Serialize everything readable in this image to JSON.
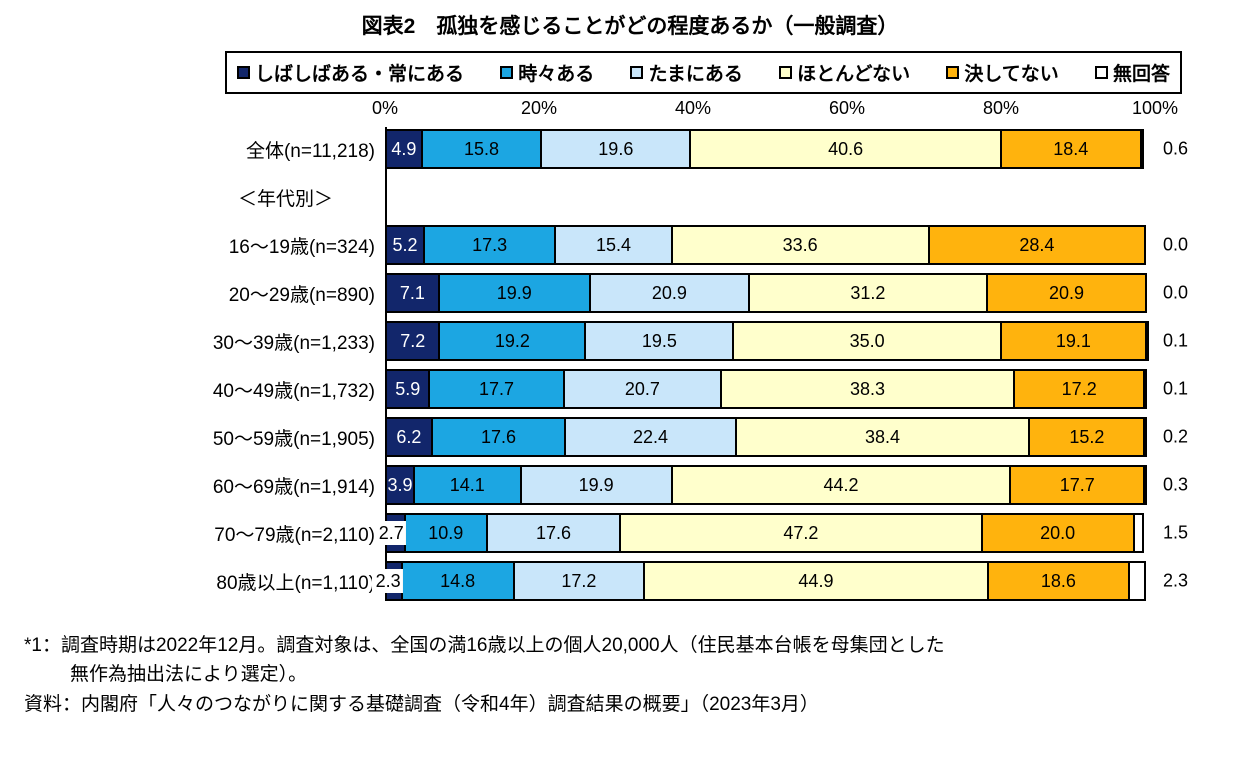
{
  "title": "図表2　孤独を感じることがどの程度あるか（一般調査）",
  "legend": [
    {
      "label": "しばしばある・常にある",
      "color": "#12266B"
    },
    {
      "label": "時々ある",
      "color": "#1CA6E2"
    },
    {
      "label": "たまにある",
      "color": "#C9E6FA"
    },
    {
      "label": "ほとんどない",
      "color": "#FFFFCC"
    },
    {
      "label": "決してない",
      "color": "#FFB30D"
    },
    {
      "label": "無回答",
      "color": "#FFFFFF"
    }
  ],
  "axis": {
    "ticks": [
      "0%",
      "20%",
      "40%",
      "60%",
      "80%",
      "100%"
    ]
  },
  "chart_data": {
    "type": "bar",
    "stacked": true,
    "orientation": "horizontal",
    "title": "図表2　孤独を感じることがどの程度あるか（一般調査）",
    "xlim": [
      0,
      100
    ],
    "x_ticks": [
      "0%",
      "20%",
      "40%",
      "60%",
      "80%",
      "100%"
    ],
    "legend_position": "top",
    "series_names": [
      "しばしばある・常にある",
      "時々ある",
      "たまにある",
      "ほとんどない",
      "決してない",
      "無回答"
    ],
    "series_colors": [
      "#12266B",
      "#1CA6E2",
      "#C9E6FA",
      "#FFFFCC",
      "#FFB30D",
      "#FFFFFF"
    ],
    "rows": [
      {
        "label": "全体(n=11,218)",
        "values": [
          4.9,
          15.8,
          19.6,
          40.6,
          18.4,
          0.6
        ]
      },
      {
        "type": "section",
        "label": "＜年代別＞"
      },
      {
        "label": "16～19歳(n=324)",
        "values": [
          5.2,
          17.3,
          15.4,
          33.6,
          28.4,
          0.0
        ]
      },
      {
        "label": "20～29歳(n=890)",
        "values": [
          7.1,
          19.9,
          20.9,
          31.2,
          20.9,
          0.0
        ]
      },
      {
        "label": "30～39歳(n=1,233)",
        "values": [
          7.2,
          19.2,
          19.5,
          35.0,
          19.1,
          0.1
        ]
      },
      {
        "label": "40～49歳(n=1,732)",
        "values": [
          5.9,
          17.7,
          20.7,
          38.3,
          17.2,
          0.1
        ]
      },
      {
        "label": "50～59歳(n=1,905)",
        "values": [
          6.2,
          17.6,
          22.4,
          38.4,
          15.2,
          0.2
        ]
      },
      {
        "label": "60～69歳(n=1,914)",
        "values": [
          3.9,
          14.1,
          19.9,
          44.2,
          17.7,
          0.3
        ]
      },
      {
        "label": "70～79歳(n=2,110)",
        "values": [
          2.7,
          10.9,
          17.6,
          47.2,
          20.0,
          1.5
        ],
        "first_value_outside": true
      },
      {
        "label": "80歳以上(n=1,110)",
        "values": [
          2.3,
          14.8,
          17.2,
          44.9,
          18.6,
          2.3
        ],
        "first_value_outside": true
      }
    ]
  },
  "footnotes": [
    "*1：調査時期は2022年12月。調査対象は、全国の満16歳以上の個人20,000人（住民基本台帳を母集団とした",
    "無作為抽出法により選定）。",
    "資料：内閣府「人々のつながりに関する基礎調査（令和4年）調査結果の概要」（2023年3月）"
  ]
}
